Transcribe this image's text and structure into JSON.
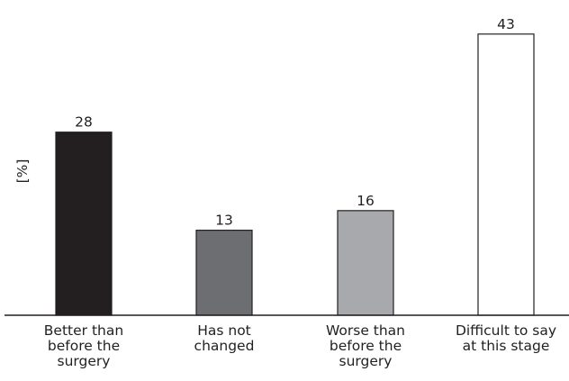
{
  "chart_data": {
    "type": "bar",
    "categories": [
      [
        "Better than",
        "before the",
        "surgery"
      ],
      [
        "Has not",
        "changed"
      ],
      [
        "Worse than",
        "before the",
        "surgery"
      ],
      [
        "Difficult to say",
        "at this stage"
      ]
    ],
    "values": [
      28,
      13,
      16,
      43
    ],
    "value_labels": [
      "28",
      "13",
      "16",
      "43"
    ],
    "bar_colors": [
      "#231f20",
      "#6d6e71",
      "#a7a9ac",
      "#ffffff"
    ],
    "ylabel": "[%]",
    "ylim": [
      0,
      45
    ],
    "grid": false,
    "legend": "none"
  }
}
